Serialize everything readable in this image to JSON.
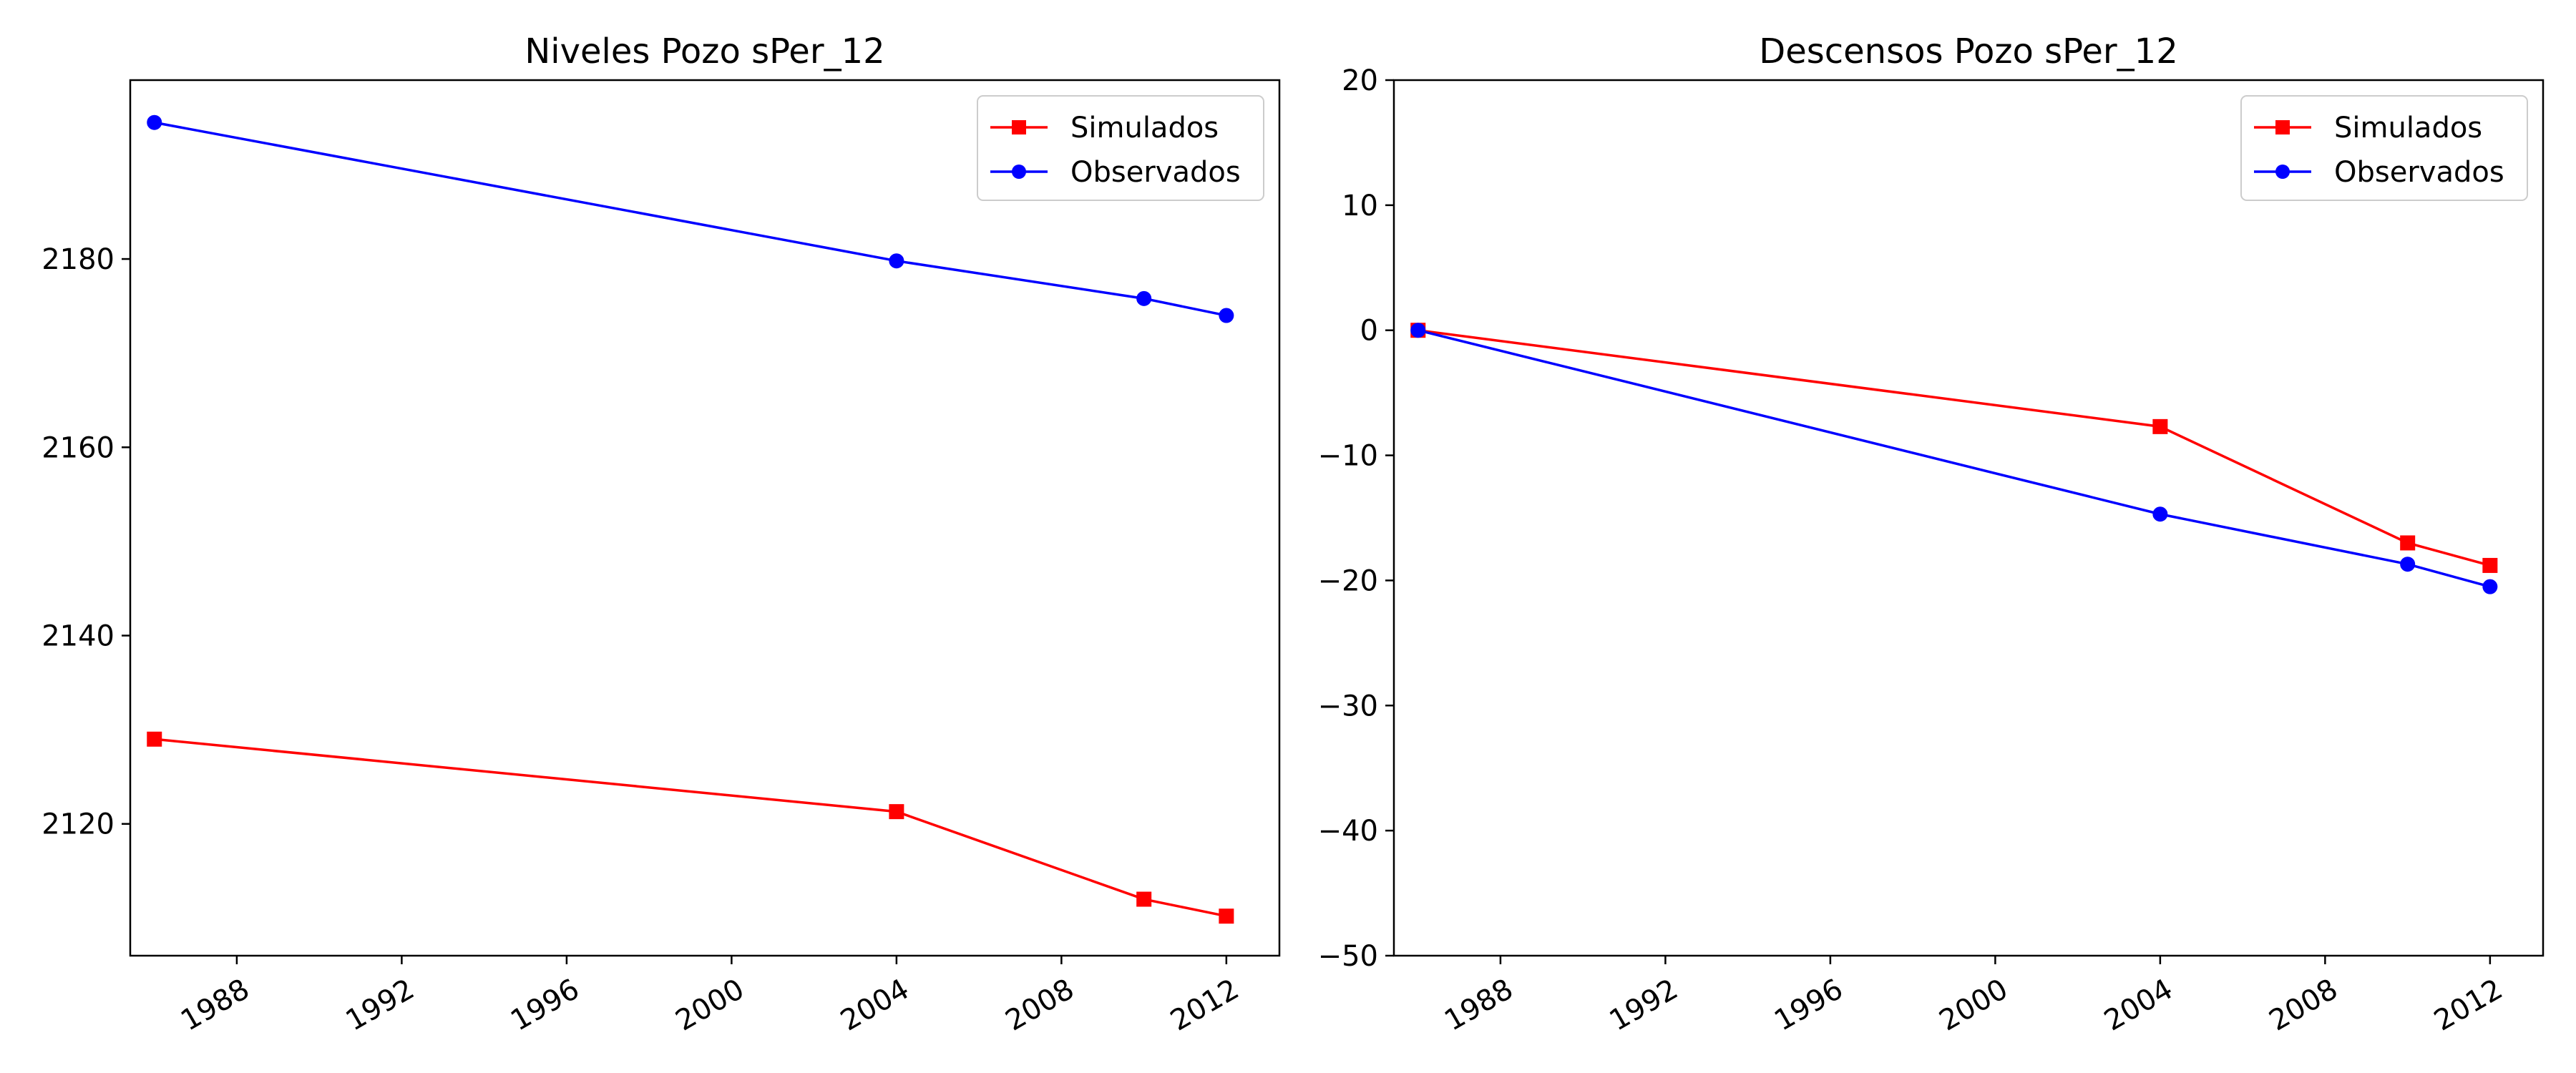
{
  "colors": {
    "simulados": "#ff0000",
    "observados": "#0000ff"
  },
  "chart_data": [
    {
      "type": "line",
      "title": "Niveles Pozo sPer_12",
      "xlabel": "",
      "ylabel": "",
      "x_type": "date",
      "xlim": [
        "1985-06-01",
        "2013-04-15"
      ],
      "ylim": [
        2106,
        2199
      ],
      "xticks": [
        "1988",
        "1992",
        "1996",
        "2000",
        "2004",
        "2008",
        "2012"
      ],
      "yticks": [
        2120,
        2140,
        2160,
        2180
      ],
      "grid": false,
      "legend": "top-right",
      "series": [
        {
          "name": "Simulados",
          "marker": "square",
          "color": "#ff0000",
          "x": [
            "1986-01-01",
            "2004-01-01",
            "2010-01-01",
            "2012-01-01"
          ],
          "y": [
            2129.0,
            2121.3,
            2112.0,
            2110.2
          ]
        },
        {
          "name": "Observados",
          "marker": "circle",
          "color": "#0000ff",
          "x": [
            "1986-01-01",
            "2004-01-01",
            "2010-01-01",
            "2012-01-01"
          ],
          "y": [
            2194.5,
            2179.8,
            2175.8,
            2174.0
          ]
        }
      ]
    },
    {
      "type": "line",
      "title": "Descensos Pozo sPer_12",
      "xlabel": "",
      "ylabel": "",
      "x_type": "date",
      "xlim": [
        "1985-06-01",
        "2013-04-15"
      ],
      "ylim": [
        -50,
        20
      ],
      "xticks": [
        "1988",
        "1992",
        "1996",
        "2000",
        "2004",
        "2008",
        "2012"
      ],
      "yticks": [
        -50,
        -40,
        -30,
        -20,
        -10,
        0,
        10,
        20
      ],
      "ytick_labels": [
        "−50",
        "−40",
        "−30",
        "−20",
        "−10",
        "0",
        "10",
        "20"
      ],
      "grid": false,
      "legend": "top-right",
      "series": [
        {
          "name": "Simulados",
          "marker": "square",
          "color": "#ff0000",
          "x": [
            "1986-01-01",
            "2004-01-01",
            "2010-01-01",
            "2012-01-01"
          ],
          "y": [
            0,
            -7.7,
            -17.0,
            -18.8
          ]
        },
        {
          "name": "Observados",
          "marker": "circle",
          "color": "#0000ff",
          "x": [
            "1986-01-01",
            "2004-01-01",
            "2010-01-01",
            "2012-01-01"
          ],
          "y": [
            0,
            -14.7,
            -18.7,
            -20.5
          ]
        }
      ]
    }
  ]
}
